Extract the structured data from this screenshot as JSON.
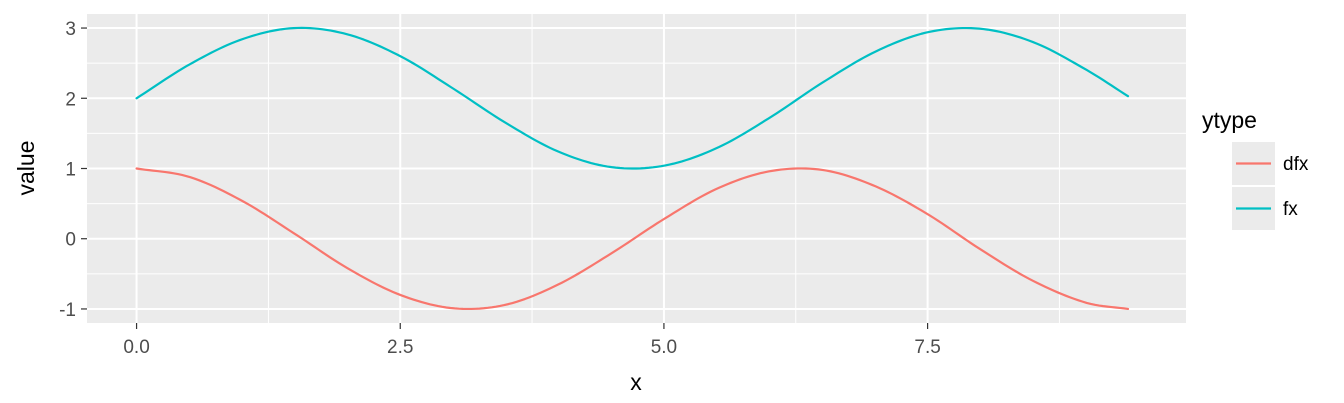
{
  "chart_data": {
    "type": "line",
    "xlabel": "x",
    "ylabel": "value",
    "xlim": [
      -0.47,
      9.95
    ],
    "ylim": [
      -1.2,
      3.2
    ],
    "x_ticks": [
      0.0,
      2.5,
      5.0,
      7.5
    ],
    "x_tick_labels": [
      "0.0",
      "2.5",
      "5.0",
      "7.5"
    ],
    "y_ticks": [
      -1,
      0,
      1,
      2,
      3
    ],
    "y_tick_labels": [
      "-1",
      "0",
      "1",
      "2",
      "3"
    ],
    "grid": true,
    "legend": {
      "title": "ytype",
      "position": "right"
    },
    "x": [
      0,
      0.5,
      1,
      1.5,
      2,
      2.5,
      3,
      3.5,
      4,
      4.5,
      5,
      5.5,
      6,
      6.5,
      7,
      7.5,
      8,
      8.5,
      9,
      9.4
    ],
    "series": [
      {
        "name": "dfx",
        "color": "#F8766D",
        "values": [
          1.0,
          0.88,
          0.54,
          0.07,
          -0.42,
          -0.8,
          -0.99,
          -0.94,
          -0.65,
          -0.21,
          0.28,
          0.71,
          0.96,
          0.98,
          0.75,
          0.35,
          -0.15,
          -0.6,
          -0.91,
          -1.0
        ]
      },
      {
        "name": "fx",
        "color": "#00BFC4",
        "values": [
          2.0,
          2.48,
          2.84,
          3.0,
          2.91,
          2.6,
          2.14,
          1.65,
          1.24,
          1.02,
          1.04,
          1.29,
          1.72,
          2.22,
          2.66,
          2.94,
          2.99,
          2.8,
          2.41,
          2.03
        ]
      }
    ]
  }
}
